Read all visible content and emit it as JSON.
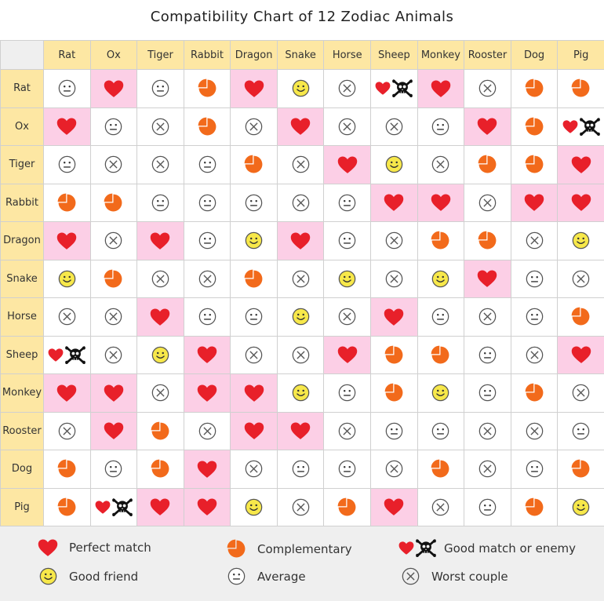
{
  "title": "Compatibility Chart of 12 Zodiac Animals",
  "animals": [
    "Rat",
    "Ox",
    "Tiger",
    "Rabbit",
    "Dragon",
    "Snake",
    "Horse",
    "Sheep",
    "Monkey",
    "Rooster",
    "Dog",
    "Pig"
  ],
  "colors": {
    "header_bg": "#fde7a3",
    "highlight_bg": "#fccfe6",
    "heart": "#e8202a",
    "pie": "#f26a1b",
    "friend_face": "#f7e84a",
    "grid_line": "#d0d0d0",
    "legend_bg": "#efefef"
  },
  "symbols": {
    "H": "heart-icon",
    "P": "pie-icon",
    "E": "heart-skull-icon",
    "G": "smiley-icon",
    "A": "neutral-face-icon",
    "X": "cross-circle-icon"
  },
  "matrix": [
    [
      "A",
      "H",
      "A",
      "P",
      "H",
      "G",
      "X",
      "E",
      "H",
      "X",
      "P",
      "P"
    ],
    [
      "H",
      "A",
      "X",
      "P",
      "X",
      "H",
      "X",
      "X",
      "A",
      "H",
      "P",
      "E"
    ],
    [
      "A",
      "X",
      "X",
      "A",
      "P",
      "X",
      "H",
      "G",
      "X",
      "P",
      "P",
      "H"
    ],
    [
      "P",
      "P",
      "A",
      "A",
      "A",
      "X",
      "A",
      "H",
      "H",
      "X",
      "H",
      "H"
    ],
    [
      "H",
      "X",
      "H",
      "A",
      "G",
      "H",
      "A",
      "X",
      "P",
      "P",
      "X",
      "G"
    ],
    [
      "G",
      "P",
      "X",
      "X",
      "P",
      "X",
      "G",
      "X",
      "G",
      "H",
      "A",
      "X"
    ],
    [
      "X",
      "X",
      "H",
      "A",
      "A",
      "G",
      "X",
      "H",
      "A",
      "X",
      "A",
      "P"
    ],
    [
      "E",
      "X",
      "G",
      "H",
      "X",
      "X",
      "H",
      "P",
      "P",
      "A",
      "X",
      "H"
    ],
    [
      "H",
      "H",
      "X",
      "H",
      "H",
      "G",
      "A",
      "P",
      "G",
      "A",
      "P",
      "X"
    ],
    [
      "X",
      "H",
      "P",
      "X",
      "H",
      "H",
      "X",
      "A",
      "A",
      "X",
      "X",
      "A"
    ],
    [
      "P",
      "A",
      "P",
      "H",
      "X",
      "A",
      "A",
      "X",
      "P",
      "X",
      "A",
      "P"
    ],
    [
      "P",
      "E",
      "H",
      "H",
      "G",
      "X",
      "P",
      "H",
      "X",
      "A",
      "P",
      "G"
    ]
  ],
  "highlight": [
    [
      0,
      1,
      0,
      0,
      1,
      0,
      0,
      0,
      1,
      0,
      0,
      0
    ],
    [
      1,
      0,
      0,
      0,
      0,
      1,
      0,
      0,
      0,
      1,
      0,
      0
    ],
    [
      0,
      0,
      0,
      0,
      0,
      0,
      1,
      0,
      0,
      0,
      0,
      1
    ],
    [
      0,
      0,
      0,
      0,
      0,
      0,
      0,
      1,
      1,
      0,
      1,
      1
    ],
    [
      1,
      0,
      1,
      0,
      0,
      1,
      0,
      0,
      0,
      0,
      0,
      0
    ],
    [
      0,
      0,
      0,
      0,
      0,
      0,
      0,
      0,
      0,
      1,
      0,
      0
    ],
    [
      0,
      0,
      1,
      0,
      0,
      0,
      0,
      1,
      0,
      0,
      0,
      0
    ],
    [
      0,
      0,
      0,
      1,
      0,
      0,
      1,
      0,
      0,
      0,
      0,
      1
    ],
    [
      1,
      1,
      0,
      1,
      1,
      0,
      0,
      0,
      0,
      0,
      0,
      0
    ],
    [
      0,
      1,
      0,
      0,
      1,
      1,
      0,
      0,
      0,
      0,
      0,
      0
    ],
    [
      0,
      0,
      0,
      1,
      0,
      0,
      0,
      0,
      0,
      0,
      0,
      0
    ],
    [
      0,
      0,
      1,
      1,
      0,
      0,
      0,
      1,
      0,
      0,
      0,
      0
    ]
  ],
  "legend": [
    {
      "symbol": "H",
      "label": "Perfect match"
    },
    {
      "symbol": "P",
      "label": "Complementary"
    },
    {
      "symbol": "E",
      "label": "Good match or enemy"
    },
    {
      "symbol": "G",
      "label": "Good friend"
    },
    {
      "symbol": "A",
      "label": "Average"
    },
    {
      "symbol": "X",
      "label": "Worst couple"
    }
  ]
}
